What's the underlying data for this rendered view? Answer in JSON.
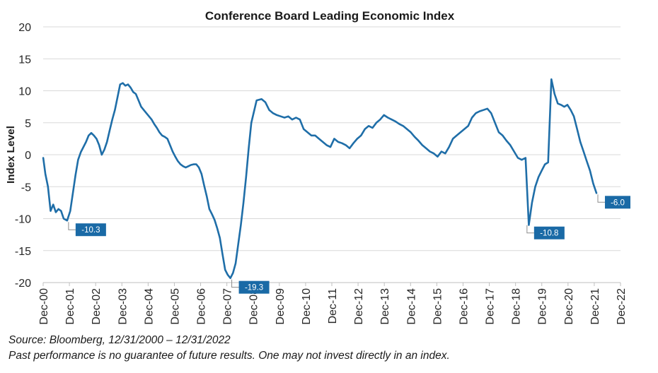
{
  "chart_data": {
    "type": "line",
    "title": "Conference Board Leading Economic Index",
    "ylabel": "Index Level",
    "xlabel": "",
    "ylim": [
      -20,
      20
    ],
    "yticks": [
      20,
      15,
      10,
      5,
      0,
      -5,
      -10,
      -15,
      -20
    ],
    "xticks": [
      "Dec-00",
      "Dec-01",
      "Dec-02",
      "Dec-03",
      "Dec-04",
      "Dec-05",
      "Dec-06",
      "Dec-07",
      "Dec-08",
      "Dec-09",
      "Dec-10",
      "Dec-11",
      "Dec-12",
      "Dec-13",
      "Dec-14",
      "Dec-15",
      "Dec-16",
      "Dec-17",
      "Dec-18",
      "Dec-19",
      "Dec-20",
      "Dec-21",
      "Dec-22"
    ],
    "grid": true,
    "series_color": "#1f6ea8",
    "x_start_year": 2000.917,
    "points": [
      [
        2000.92,
        -0.5
      ],
      [
        2001.0,
        -3.0
      ],
      [
        2001.1,
        -5.0
      ],
      [
        2001.2,
        -8.8
      ],
      [
        2001.3,
        -7.8
      ],
      [
        2001.4,
        -9.0
      ],
      [
        2001.5,
        -8.5
      ],
      [
        2001.6,
        -8.8
      ],
      [
        2001.7,
        -10.0
      ],
      [
        2001.83,
        -10.3
      ],
      [
        2001.95,
        -8.8
      ],
      [
        2002.05,
        -6.0
      ],
      [
        2002.15,
        -3.2
      ],
      [
        2002.25,
        -0.8
      ],
      [
        2002.35,
        0.4
      ],
      [
        2002.45,
        1.2
      ],
      [
        2002.55,
        2.0
      ],
      [
        2002.65,
        3.0
      ],
      [
        2002.75,
        3.4
      ],
      [
        2002.85,
        3.0
      ],
      [
        2002.95,
        2.5
      ],
      [
        2003.05,
        1.5
      ],
      [
        2003.15,
        0.0
      ],
      [
        2003.25,
        0.8
      ],
      [
        2003.35,
        2.0
      ],
      [
        2003.45,
        3.8
      ],
      [
        2003.55,
        5.5
      ],
      [
        2003.65,
        7.0
      ],
      [
        2003.75,
        9.0
      ],
      [
        2003.85,
        11.0
      ],
      [
        2003.95,
        11.2
      ],
      [
        2004.05,
        10.8
      ],
      [
        2004.15,
        11.0
      ],
      [
        2004.25,
        10.5
      ],
      [
        2004.35,
        9.8
      ],
      [
        2004.45,
        9.5
      ],
      [
        2004.55,
        8.5
      ],
      [
        2004.65,
        7.5
      ],
      [
        2004.75,
        7.0
      ],
      [
        2004.85,
        6.5
      ],
      [
        2004.95,
        6.0
      ],
      [
        2005.05,
        5.5
      ],
      [
        2005.15,
        4.8
      ],
      [
        2005.25,
        4.2
      ],
      [
        2005.35,
        3.5
      ],
      [
        2005.45,
        3.0
      ],
      [
        2005.55,
        2.8
      ],
      [
        2005.65,
        2.5
      ],
      [
        2005.75,
        1.5
      ],
      [
        2005.85,
        0.5
      ],
      [
        2005.95,
        -0.3
      ],
      [
        2006.05,
        -1.0
      ],
      [
        2006.15,
        -1.5
      ],
      [
        2006.25,
        -1.8
      ],
      [
        2006.35,
        -2.0
      ],
      [
        2006.45,
        -1.8
      ],
      [
        2006.55,
        -1.6
      ],
      [
        2006.65,
        -1.5
      ],
      [
        2006.75,
        -1.5
      ],
      [
        2006.85,
        -2.0
      ],
      [
        2006.95,
        -3.0
      ],
      [
        2007.05,
        -4.8
      ],
      [
        2007.15,
        -6.5
      ],
      [
        2007.25,
        -8.5
      ],
      [
        2007.35,
        -9.3
      ],
      [
        2007.45,
        -10.2
      ],
      [
        2007.55,
        -11.5
      ],
      [
        2007.65,
        -13.0
      ],
      [
        2007.75,
        -15.5
      ],
      [
        2007.85,
        -18.0
      ],
      [
        2007.95,
        -18.8
      ],
      [
        2008.05,
        -19.3
      ],
      [
        2008.15,
        -18.5
      ],
      [
        2008.25,
        -17.0
      ],
      [
        2008.35,
        -14.0
      ],
      [
        2008.45,
        -11.0
      ],
      [
        2008.55,
        -7.5
      ],
      [
        2008.65,
        -3.5
      ],
      [
        2008.75,
        1.0
      ],
      [
        2008.85,
        5.0
      ],
      [
        2008.92,
        8.5
      ],
      [
        2009.05,
        8.7
      ],
      [
        2009.15,
        8.2
      ],
      [
        2009.25,
        7.0
      ],
      [
        2009.35,
        6.5
      ],
      [
        2009.45,
        6.2
      ],
      [
        2009.55,
        6.0
      ],
      [
        2009.65,
        5.8
      ],
      [
        2009.75,
        6.0
      ],
      [
        2009.85,
        5.5
      ],
      [
        2009.95,
        5.8
      ],
      [
        2010.05,
        5.5
      ],
      [
        2010.15,
        4.0
      ],
      [
        2010.25,
        3.5
      ],
      [
        2010.35,
        3.0
      ],
      [
        2010.45,
        3.0
      ],
      [
        2010.55,
        2.5
      ],
      [
        2010.65,
        2.0
      ],
      [
        2010.75,
        1.5
      ],
      [
        2010.85,
        1.2
      ],
      [
        2010.95,
        2.5
      ],
      [
        2011.05,
        2.0
      ],
      [
        2011.15,
        1.8
      ],
      [
        2011.25,
        1.5
      ],
      [
        2011.35,
        1.0
      ],
      [
        2011.45,
        1.8
      ],
      [
        2011.55,
        2.5
      ],
      [
        2011.65,
        3.0
      ],
      [
        2011.75,
        4.0
      ],
      [
        2011.85,
        4.5
      ],
      [
        2011.95,
        4.2
      ],
      [
        2012.05,
        5.0
      ],
      [
        2012.15,
        5.5
      ],
      [
        2012.25,
        6.2
      ],
      [
        2012.35,
        5.8
      ],
      [
        2012.45,
        5.5
      ],
      [
        2012.55,
        5.2
      ],
      [
        2012.65,
        4.8
      ],
      [
        2012.75,
        4.5
      ],
      [
        2012.85,
        4.0
      ],
      [
        2012.95,
        3.5
      ],
      [
        2013.05,
        2.8
      ],
      [
        2013.15,
        2.2
      ],
      [
        2013.25,
        1.5
      ],
      [
        2013.35,
        1.0
      ],
      [
        2013.45,
        0.5
      ],
      [
        2013.55,
        0.2
      ],
      [
        2013.65,
        -0.3
      ],
      [
        2013.75,
        0.5
      ],
      [
        2013.85,
        0.2
      ],
      [
        2013.95,
        1.2
      ],
      [
        2014.05,
        2.5
      ],
      [
        2014.15,
        3.0
      ],
      [
        2014.25,
        3.5
      ],
      [
        2014.35,
        4.0
      ],
      [
        2014.45,
        4.5
      ],
      [
        2014.55,
        5.8
      ],
      [
        2014.65,
        6.5
      ],
      [
        2014.75,
        6.8
      ],
      [
        2014.85,
        7.0
      ],
      [
        2014.95,
        7.2
      ],
      [
        2015.05,
        6.5
      ],
      [
        2015.15,
        5.0
      ],
      [
        2015.25,
        3.5
      ],
      [
        2015.35,
        3.0
      ],
      [
        2015.45,
        2.2
      ],
      [
        2015.55,
        1.5
      ],
      [
        2015.65,
        0.5
      ],
      [
        2015.75,
        -0.5
      ],
      [
        2015.85,
        -0.8
      ],
      [
        2015.95,
        -0.5
      ],
      [
        2016.05,
        -11.0
      ],
      [
        2016.15,
        -7.5
      ],
      [
        2016.25,
        -5.0
      ],
      [
        2016.35,
        -3.5
      ],
      [
        2016.45,
        -2.5
      ],
      [
        2016.55,
        -1.5
      ],
      [
        2016.65,
        -1.2
      ],
      [
        2016.75,
        11.8
      ],
      [
        2016.85,
        9.5
      ],
      [
        2016.95,
        8.0
      ],
      [
        2017.05,
        7.8
      ],
      [
        2017.15,
        7.5
      ],
      [
        2017.25,
        7.8
      ],
      [
        2017.35,
        7.0
      ],
      [
        2017.45,
        6.0
      ],
      [
        2017.55,
        4.0
      ],
      [
        2017.65,
        2.0
      ],
      [
        2017.75,
        0.5
      ],
      [
        2017.85,
        -1.0
      ],
      [
        2017.95,
        -2.5
      ],
      [
        2018.05,
        -4.5
      ],
      [
        2018.15,
        -6.0
      ]
    ],
    "annotations": [
      {
        "label": "-10.3",
        "x": 2001.83,
        "y": -10.3
      },
      {
        "label": "-19.3",
        "x": 2008.05,
        "y": -19.3
      },
      {
        "label": "-10.8",
        "x": 2019.3,
        "y": -10.8
      },
      {
        "label": "-6.0",
        "x": 2022.0,
        "y": -6.0
      }
    ]
  },
  "footer": {
    "source": "Source: Bloomberg, 12/31/2000 – 12/31/2022",
    "disclaimer": "Past performance is no guarantee of future results. One may not invest directly in an index."
  }
}
